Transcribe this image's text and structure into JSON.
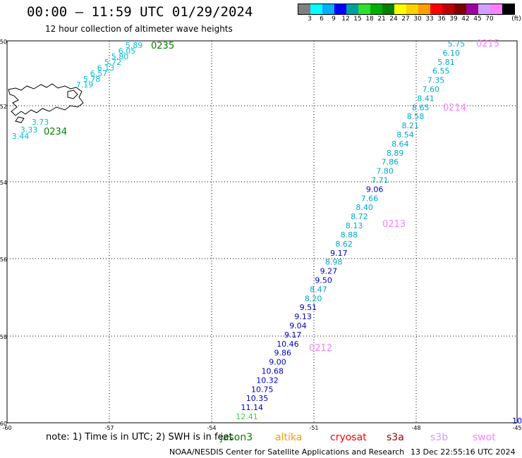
{
  "title": "00:00 – 11:59 UTC 01/29/2024",
  "subtitle": "12 hour collection of altimeter wave heights",
  "legend": {
    "unit": "(ft)",
    "colors": [
      "#808080",
      "#00ffff",
      "#00b0ff",
      "#0000ff",
      "#00a0a0",
      "#30e030",
      "#00b000",
      "#008000",
      "#ffff00",
      "#ffd000",
      "#ffa000",
      "#ff0000",
      "#c00000",
      "#800000",
      "#a000a0",
      "#d0a0ff",
      "#ff80ff",
      "#000000"
    ],
    "labels": [
      "3",
      "6",
      "9",
      "12",
      "15",
      "18",
      "21",
      "24",
      "27",
      "30",
      "33",
      "36",
      "39",
      "42",
      "45",
      "70"
    ]
  },
  "axes": {
    "lat_labels": [
      "-50",
      "-52",
      "-54",
      "-56",
      "-58",
      "-60"
    ],
    "lon_labels": [
      "-60",
      "-57",
      "-54",
      "-51",
      "-48",
      "-45"
    ]
  },
  "passes": [
    {
      "label": "0235",
      "color": "#008000"
    },
    {
      "label": "0234",
      "color": "#008000"
    },
    {
      "label": "0215",
      "color": "#ff80ff"
    },
    {
      "label": "0214",
      "color": "#ff80ff"
    },
    {
      "label": "0213",
      "color": "#ff80ff"
    },
    {
      "label": "0212",
      "color": "#ff80ff"
    }
  ],
  "track_west_values": [
    "5.89",
    "6.05",
    "5.80",
    "5.72",
    "6.13",
    "6.57",
    "5.78",
    "7.19"
  ],
  "track_west_south_values": [
    "3.73",
    "3.33",
    "3.44"
  ],
  "track_east_values": [
    "5.75",
    "6.10",
    "5.81",
    "6.55",
    "7.35",
    "7.60",
    "8.41",
    "8.65",
    "8.58",
    "8.21",
    "8.54",
    "8.64",
    "8.89",
    "7.86",
    "7.80",
    "7.71",
    "9.06",
    "7.66",
    "8.40",
    "8.72",
    "8.13",
    "8.88",
    "8.62",
    "9.17",
    "8.98",
    "9.27",
    "9.50",
    "8.47",
    "8.20",
    "9.51",
    "9.13",
    "9.04",
    "9.17",
    "10.46",
    "9.86",
    "9.00",
    "10.68",
    "10.32",
    "10.75",
    "10.35",
    "11.14",
    "12.41"
  ],
  "edge_value": "10",
  "note": "note: 1) Time is in UTC; 2) SWH is in feet",
  "missions": [
    {
      "name": "jason3",
      "color": "#008000"
    },
    {
      "name": "altika",
      "color": "#ff9900"
    },
    {
      "name": "cryosat",
      "color": "#ff0000"
    },
    {
      "name": "s3a",
      "color": "#990000"
    },
    {
      "name": "s3b",
      "color": "#c8a0ff"
    },
    {
      "name": "swot",
      "color": "#ff80ff"
    }
  ],
  "credit": "NOAA/NESDIS Center for Satellite Applications and Research",
  "generated": "13 Dec 22:55:16 UTC 2024"
}
